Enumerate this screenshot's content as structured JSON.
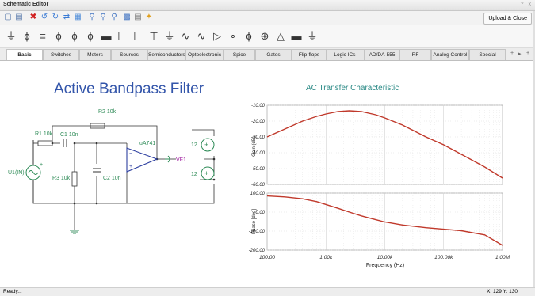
{
  "window": {
    "title": "Schematic Editor",
    "controls": "? x"
  },
  "toolbar": {
    "upload_label": "Upload & Close",
    "buttons": [
      "new-document-icon",
      "save-icon",
      "delete-icon",
      "rotate-left-icon",
      "rotate-right-icon",
      "flip-icon",
      "grid-icon",
      "zoom-in-icon",
      "zoom-out-icon",
      "zoom-fit-icon",
      "notes-icon",
      "bill-of-materials-icon",
      "wizard-icon"
    ]
  },
  "component_palette": [
    "ground",
    "battery",
    "capacitor-polarized",
    "ac-source",
    "dc-source",
    "resistor",
    "switch",
    "capacitor",
    "inductor",
    "transformer",
    "diode",
    "wire-junction",
    "inverter",
    "bulb",
    "potentiometer",
    "fuse",
    "antenna"
  ],
  "tabs": [
    "Basic",
    "Switches",
    "Meters",
    "Sources",
    "Semiconductors",
    "Optoelectronic",
    "Spice Macros",
    "Gates",
    "Flip-flops",
    "Logic ICs-MCUs",
    "AD/DA-555",
    "RF",
    "Analog Control",
    "Special"
  ],
  "active_tab": "Basic",
  "tab_nav": [
    "+",
    "▸",
    "+"
  ],
  "schematic": {
    "title": "Active Bandpass Filter",
    "components": {
      "r1": "R1 10k",
      "c1": "C1 10n",
      "r2": "R2 10k",
      "r3": "R3 10k",
      "c2": "C2 10n",
      "opamp": "uA741",
      "source": "U1(IN)",
      "probe": "VF1",
      "v_top": "12",
      "v_bottom": "12",
      "opamp_minus": "−",
      "opamp_plus": "+",
      "src_plus": "+"
    }
  },
  "chart_data": [
    {
      "type": "line",
      "title": "AC Transfer Characteristic",
      "xlabel": "Frequency (Hz)",
      "ylabel": "Gain (dB)",
      "xscale": "log",
      "xlim": [
        100,
        1000000
      ],
      "ylim": [
        -60,
        -10
      ],
      "yticks": [
        "-10.00",
        "-20.00",
        "-30.00",
        "-40.00",
        "-50.00",
        "-60.00"
      ],
      "grid": true,
      "series": [
        {
          "color": "#c0392b",
          "x": [
            100,
            200,
            400,
            700,
            1000,
            1600,
            2500,
            4000,
            7000,
            10000,
            20000,
            50000,
            100000,
            200000,
            500000,
            1000000
          ],
          "values": [
            -30,
            -25,
            -20,
            -17,
            -15.5,
            -14,
            -13.5,
            -14,
            -16,
            -18,
            -22.5,
            -30,
            -35,
            -41,
            -49,
            -56
          ]
        }
      ]
    },
    {
      "type": "line",
      "xlabel": "Frequency (Hz)",
      "ylabel": "Phase [deg]",
      "xscale": "log",
      "xlim": [
        100,
        1000000
      ],
      "ylim": [
        -200,
        100
      ],
      "yticks": [
        "100.00",
        "0.00",
        "-100.00",
        "-200.00"
      ],
      "xticks": [
        "100.00",
        "1.00k",
        "10.00k",
        "100.00k",
        "1.00M"
      ],
      "grid": true,
      "series": [
        {
          "color": "#c0392b",
          "x": [
            100,
            200,
            400,
            700,
            1000,
            1600,
            2500,
            4000,
            7000,
            10000,
            20000,
            50000,
            100000,
            200000,
            500000,
            1000000
          ],
          "values": [
            85,
            80,
            70,
            55,
            40,
            20,
            0,
            -20,
            -40,
            -52,
            -68,
            -82,
            -90,
            -98,
            -120,
            -175
          ]
        }
      ]
    }
  ],
  "status": {
    "left": "Ready...",
    "coords": "X: 129 Y: 130"
  }
}
